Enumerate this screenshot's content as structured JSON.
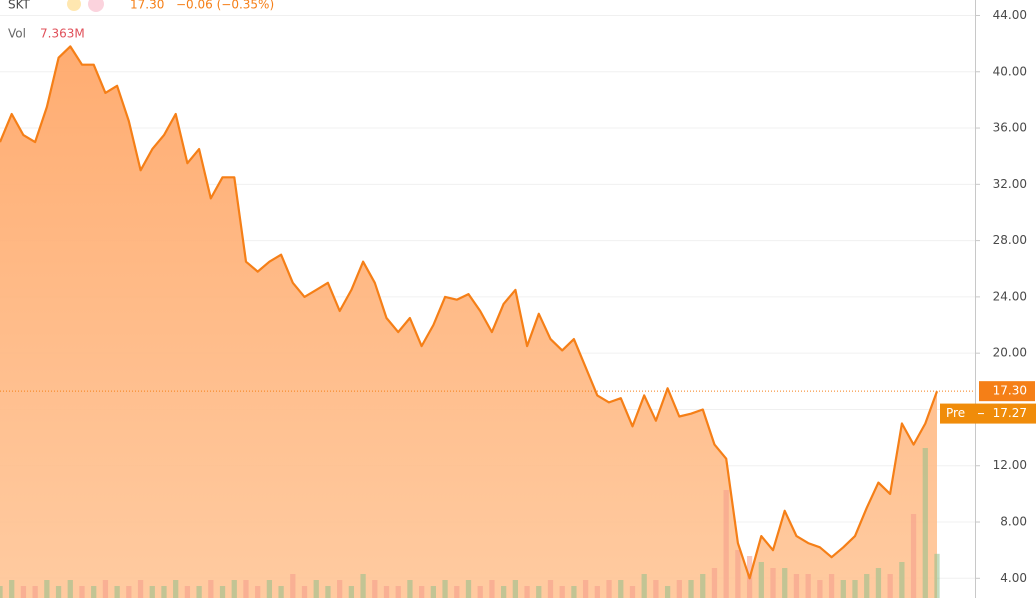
{
  "chart_data": {
    "type": "area",
    "symbol": "SKT",
    "quote": "17.30",
    "change": "−0.06 (−0.35%)",
    "volume_title": "Vol",
    "volume_label": "7.363M",
    "values": [
      35,
      37,
      35.5,
      35,
      37.5,
      41,
      41.8,
      40.5,
      40.5,
      38.5,
      39,
      36.5,
      33,
      34.5,
      35.5,
      37,
      33.5,
      34.5,
      31,
      32.5,
      32.5,
      26.5,
      25.8,
      26.5,
      27,
      25,
      24,
      24.5,
      25,
      23,
      24.5,
      26.5,
      25,
      22.5,
      21.5,
      22.5,
      20.5,
      22,
      24,
      23.8,
      24.2,
      23,
      21.5,
      23.5,
      24.5,
      20.5,
      22.8,
      21,
      20.2,
      21,
      19,
      17,
      16.5,
      16.8,
      14.8,
      17,
      15.2,
      17.5,
      15.5,
      15.7,
      16,
      13.5,
      12.5,
      6.5,
      4,
      7,
      6,
      8.8,
      7,
      6.5,
      6.2,
      5.5,
      6.2,
      7,
      9,
      10.8,
      10,
      15,
      13.5,
      15,
      17.3
    ],
    "volume": [
      2,
      3,
      2,
      2,
      3,
      2,
      3,
      2,
      2,
      3,
      2,
      2,
      3,
      2,
      2,
      3,
      2,
      2,
      3,
      2,
      3,
      3,
      2,
      3,
      2,
      4,
      2,
      3,
      2,
      3,
      2,
      4,
      3,
      2,
      2,
      3,
      2,
      2,
      3,
      2,
      3,
      2,
      3,
      2,
      3,
      2,
      2,
      3,
      2,
      2,
      3,
      2,
      3,
      3,
      2,
      4,
      3,
      2,
      3,
      3,
      4,
      5,
      18,
      8,
      7,
      6,
      5,
      5,
      4,
      4,
      3,
      4,
      3,
      3,
      4,
      5,
      4,
      6,
      14,
      25,
      7.363
    ],
    "color": "#f57f17",
    "area_color": "#ffb27a",
    "volume_up_color": "#8fbf8a",
    "volume_down_color": "#f49a8a",
    "last_price": {
      "value": 17.3,
      "label": "17.30"
    },
    "pre_market": {
      "name": "Pre",
      "value": 17.27,
      "label": "17.27"
    },
    "ylim": [
      2.6,
      45.1
    ],
    "yticks": [
      {
        "value": 4,
        "label": "4.00"
      },
      {
        "value": 8,
        "label": "8.00"
      },
      {
        "value": 12,
        "label": "12.00"
      },
      {
        "value": 16,
        "label": "16.00"
      },
      {
        "value": 20,
        "label": "20.00"
      },
      {
        "value": 24,
        "label": "24.00"
      },
      {
        "value": 28,
        "label": "28.00"
      },
      {
        "value": 32,
        "label": "32.00"
      },
      {
        "value": 36,
        "label": "36.00"
      },
      {
        "value": 40,
        "label": "40.00"
      },
      {
        "value": 44,
        "label": "44.00"
      }
    ],
    "grid": true
  }
}
